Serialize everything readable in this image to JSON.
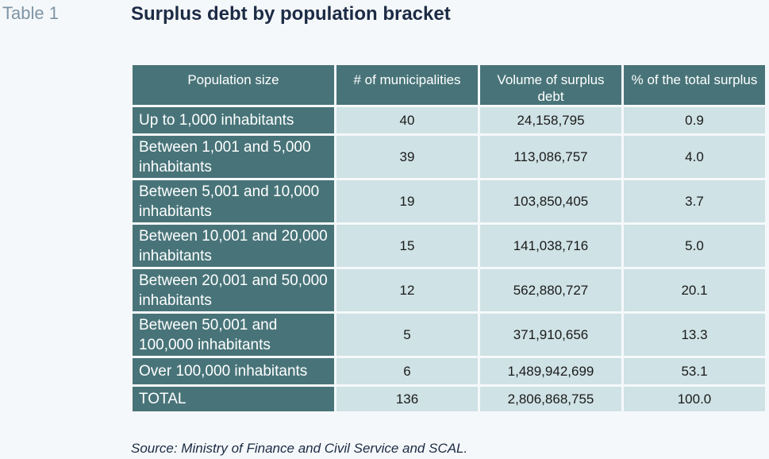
{
  "table_label": "Table 1",
  "title": "Surplus debt by population bracket",
  "table": {
    "headers": [
      "Population size",
      "# of municipalities",
      "Volume of surplus debt",
      "% of the total surplus"
    ],
    "rows": [
      {
        "label": "Up to 1,000 inhabitants",
        "municipalities": "40",
        "volume": "24,158,795",
        "percent": "0.9"
      },
      {
        "label": "Between 1,001 and 5,000 inhabitants",
        "municipalities": "39",
        "volume": "113,086,757",
        "percent": "4.0"
      },
      {
        "label": "Between 5,001 and 10,000 inhabitants",
        "municipalities": "19",
        "volume": "103,850,405",
        "percent": "3.7"
      },
      {
        "label": "Between 10,001 and 20,000 inhabitants",
        "municipalities": "15",
        "volume": "141,038,716",
        "percent": "5.0"
      },
      {
        "label": "Between 20,001 and 50,000 inhabitants",
        "municipalities": "12",
        "volume": "562,880,727",
        "percent": "20.1"
      },
      {
        "label": "Between 50,001 and 100,000 inhabitants",
        "municipalities": "5",
        "volume": "371,910,656",
        "percent": "13.3"
      },
      {
        "label": "Over 100,000 inhabitants",
        "municipalities": "6",
        "volume": "1,489,942,699",
        "percent": "53.1"
      },
      {
        "label": "TOTAL",
        "municipalities": "136",
        "volume": "2,806,868,755",
        "percent": "100.0"
      }
    ]
  },
  "source": "Source: Ministry of Finance and Civil Service and SCAL."
}
